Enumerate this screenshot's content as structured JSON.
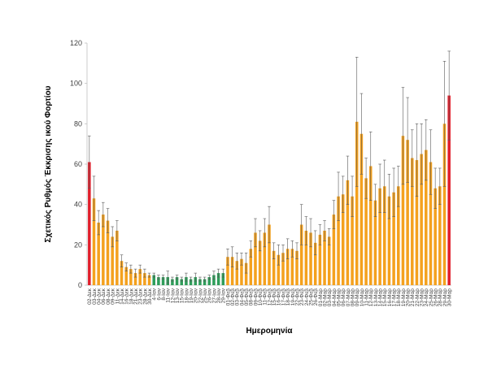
{
  "chart_data": {
    "type": "bar",
    "xlabel": "Ημερομηνία",
    "ylabel": "Σχετικός Ρυθμός Έκκρισης ικού Φορτίου",
    "ylim": [
      0,
      120
    ],
    "yticks": [
      0,
      20,
      40,
      60,
      80,
      100,
      120
    ],
    "grid": false,
    "legend": "none",
    "categories": [
      "02-Δεκ",
      "03-Δεκ",
      "04-Δεκ",
      "06-Δεκ",
      "08-Δεκ",
      "09-Δεκ",
      "11-Δεκ",
      "14-Δεκ",
      "16-Δεκ",
      "18-Δεκ",
      "21-Δεκ",
      "23-Δεκ",
      "28-Δεκ",
      "30-Δεκ",
      "4-Ιαν",
      "6-Ιαν",
      "8-Ιαν",
      "11-Ιαν",
      "12-Ιαν",
      "13-Ιαν",
      "15-Ιαν",
      "18-Ιαν",
      "19-Ιαν",
      "20-Ιαν",
      "22-Ιαν",
      "25-Ιαν",
      "26-Ιαν",
      "27-Ιαν",
      "28-Ιαν",
      "29-Ιαν",
      "01-Φεβ",
      "02-Φεβ",
      "03-Φεβ",
      "04-Φεβ",
      "05-Φεβ",
      "08-Φεβ",
      "09-Φεβ",
      "10-Φεβ",
      "11-Φεβ",
      "12-Φεβ",
      "15-Φεβ",
      "16-Φεβ",
      "17-Φεβ",
      "18-Φεβ",
      "19-Φεβ",
      "22-Φεβ",
      "23-Φεβ",
      "24-Φεβ",
      "25-Φεβ",
      "26-Φεβ",
      "01-Μαρ",
      "02-Μαρ",
      "03-Μαρ",
      "04-Μαρ",
      "05-Μαρ",
      "06-Μαρ",
      "07-Μαρ",
      "08-Μαρ",
      "09-Μαρ",
      "10-Μαρ",
      "11-Μαρ",
      "12-Μαρ",
      "13-Μαρ",
      "14-Μαρ",
      "15-Μαρ",
      "16-Μαρ",
      "17-Μαρ",
      "18-Μαρ",
      "19-Μαρ",
      "20-Μαρ",
      "21-Μαρ",
      "22-Μαρ",
      "23-Μαρ",
      "24-Μαρ",
      "25-Μαρ",
      "26-Μαρ",
      "28-Μαρ",
      "29-Μαρ",
      "30-Μαρ"
    ],
    "values": [
      61,
      43,
      31,
      35,
      32,
      24,
      27,
      12,
      9,
      8,
      6,
      8,
      6,
      5,
      5,
      4,
      4,
      4,
      3,
      4,
      3,
      4,
      3,
      4,
      3,
      3,
      4,
      5,
      6,
      6,
      14,
      14,
      12,
      13,
      11,
      18,
      26,
      22,
      26,
      30,
      17,
      15,
      16,
      18,
      18,
      17,
      30,
      27,
      26,
      21,
      25,
      27,
      24,
      35,
      44,
      45,
      52,
      44,
      81,
      75,
      53,
      59,
      42,
      48,
      49,
      44,
      46,
      49,
      74,
      72,
      63,
      62,
      65,
      67,
      61,
      48,
      49,
      80,
      94
    ],
    "errors": [
      13,
      11,
      6,
      6,
      6,
      5,
      5,
      3,
      2,
      2,
      2,
      2,
      2,
      1,
      1,
      1,
      1,
      3,
      1,
      1,
      1,
      2,
      1,
      2,
      1,
      1,
      1,
      2,
      2,
      2,
      4,
      5,
      4,
      3,
      5,
      4,
      7,
      5,
      7,
      9,
      4,
      5,
      4,
      5,
      4,
      4,
      10,
      7,
      7,
      6,
      5,
      5,
      4,
      7,
      12,
      9,
      12,
      10,
      32,
      20,
      10,
      17,
      8,
      12,
      13,
      11,
      12,
      10,
      24,
      21,
      14,
      18,
      15,
      15,
      16,
      10,
      9,
      31,
      22
    ],
    "bar_colors": {
      "default": "#f4a11e",
      "red": "#e11d2a",
      "green": "#2f9e5a",
      "error_bar": "#595959",
      "axis": "#bfbfbf"
    },
    "red_indices": [
      0,
      78
    ],
    "green_indices": [
      14,
      15,
      16,
      17,
      18,
      19,
      20,
      21,
      22,
      23,
      24,
      25,
      26,
      27,
      28,
      29
    ]
  }
}
